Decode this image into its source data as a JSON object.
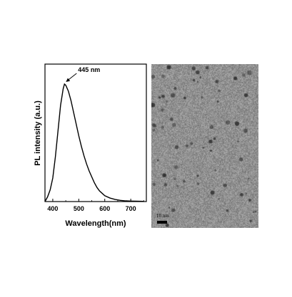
{
  "chart_data": {
    "type": "line",
    "xlabel": "Wavelength(nm)",
    "ylabel": "PL intensity (a.u.)",
    "xlim": [
      370,
      760
    ],
    "ylim": [
      0,
      1.17
    ],
    "x_ticks": [
      400,
      500,
      600,
      700
    ],
    "grid": false,
    "annotation": {
      "text": "445 nm",
      "x": 445
    },
    "series": [
      {
        "x": [
          370,
          380,
          390,
          400,
          410,
          420,
          430,
          440,
          445,
          450,
          460,
          470,
          480,
          490,
          500,
          510,
          520,
          530,
          540,
          550,
          560,
          570,
          580,
          590,
          600,
          620,
          640,
          660,
          680,
          700,
          720,
          750
        ],
        "y": [
          0.0,
          0.04,
          0.1,
          0.2,
          0.38,
          0.6,
          0.82,
          0.96,
          1.0,
          0.99,
          0.94,
          0.86,
          0.76,
          0.66,
          0.56,
          0.47,
          0.39,
          0.32,
          0.26,
          0.21,
          0.16,
          0.12,
          0.09,
          0.07,
          0.05,
          0.03,
          0.018,
          0.01,
          0.006,
          0.004,
          0.003,
          0.002
        ]
      }
    ]
  },
  "image_panel": {
    "scale_bar_label": "10 nm"
  }
}
